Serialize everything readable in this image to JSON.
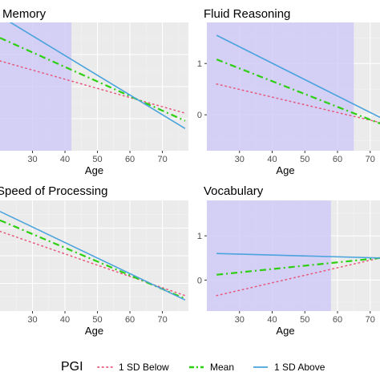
{
  "colors": {
    "panel_bg": "#ebebeb",
    "grid_major": "#ffffff",
    "grid_minor": "#f4f4f4",
    "shade": "#cec8f7",
    "below": "#e7567a",
    "mean": "#2ccf11",
    "above": "#4aa3dc"
  },
  "legend": {
    "title": "PGI",
    "items": [
      {
        "key": "below",
        "label": "1 SD Below",
        "style": "dotted"
      },
      {
        "key": "mean",
        "label": "Mean",
        "style": "dashdot"
      },
      {
        "key": "above",
        "label": "1 SD Above",
        "style": "solid"
      }
    ]
  },
  "chart_data": [
    {
      "type": "line",
      "title": "Memory",
      "xlabel": "Age",
      "ylabel": "",
      "xlim": [
        20,
        78
      ],
      "ylim": [
        -1.5,
        1.5
      ],
      "x_ticks": [
        30,
        40,
        50,
        60,
        70
      ],
      "y_ticks": [],
      "grid": true,
      "shaded_region": [
        20,
        42
      ],
      "series": [
        {
          "name": "1 SD Below",
          "x": [
            20,
            77
          ],
          "y": [
            0.6,
            -0.62
          ]
        },
        {
          "name": "Mean",
          "x": [
            20,
            77
          ],
          "y": [
            1.14,
            -0.8
          ]
        },
        {
          "name": "1 SD Above",
          "x": [
            20,
            77
          ],
          "y": [
            1.65,
            -0.98
          ]
        }
      ]
    },
    {
      "type": "line",
      "title": "Fluid Reasoning",
      "xlabel": "Age",
      "ylabel": "",
      "xlim": [
        20,
        73
      ],
      "ylim": [
        -0.7,
        1.8
      ],
      "x_ticks": [
        30,
        40,
        50,
        60,
        70
      ],
      "y_ticks": [
        0,
        1
      ],
      "grid": true,
      "shaded_region": [
        20,
        65
      ],
      "series": [
        {
          "name": "1 SD Below",
          "x": [
            23,
            73
          ],
          "y": [
            0.6,
            -0.15
          ]
        },
        {
          "name": "Mean",
          "x": [
            23,
            73
          ],
          "y": [
            1.08,
            -0.17
          ]
        },
        {
          "name": "1 SD Above",
          "x": [
            23,
            73
          ],
          "y": [
            1.55,
            -0.05
          ]
        }
      ]
    },
    {
      "type": "line",
      "title": "Speed of Processing",
      "xlabel": "Age",
      "ylabel": "",
      "xlim": [
        20,
        78
      ],
      "ylim": [
        -1.2,
        1.3
      ],
      "x_ticks": [
        30,
        40,
        50,
        60,
        70
      ],
      "y_ticks": [],
      "grid": true,
      "series": [
        {
          "name": "1 SD Below",
          "x": [
            20,
            77
          ],
          "y": [
            0.6,
            -0.85
          ]
        },
        {
          "name": "Mean",
          "x": [
            20,
            77
          ],
          "y": [
            0.85,
            -0.92
          ]
        },
        {
          "name": "1 SD Above",
          "x": [
            20,
            77
          ],
          "y": [
            1.05,
            -0.95
          ]
        }
      ]
    },
    {
      "type": "line",
      "title": "Vocabulary",
      "xlabel": "Age",
      "ylabel": "",
      "xlim": [
        20,
        73
      ],
      "ylim": [
        -0.7,
        1.8
      ],
      "x_ticks": [
        30,
        40,
        50,
        60,
        70
      ],
      "y_ticks": [
        0,
        1
      ],
      "grid": true,
      "shaded_region": [
        20,
        58
      ],
      "series": [
        {
          "name": "1 SD Below",
          "x": [
            23,
            73
          ],
          "y": [
            -0.35,
            0.5
          ]
        },
        {
          "name": "Mean",
          "x": [
            23,
            73
          ],
          "y": [
            0.12,
            0.5
          ]
        },
        {
          "name": "1 SD Above",
          "x": [
            23,
            73
          ],
          "y": [
            0.6,
            0.5
          ]
        }
      ]
    }
  ]
}
